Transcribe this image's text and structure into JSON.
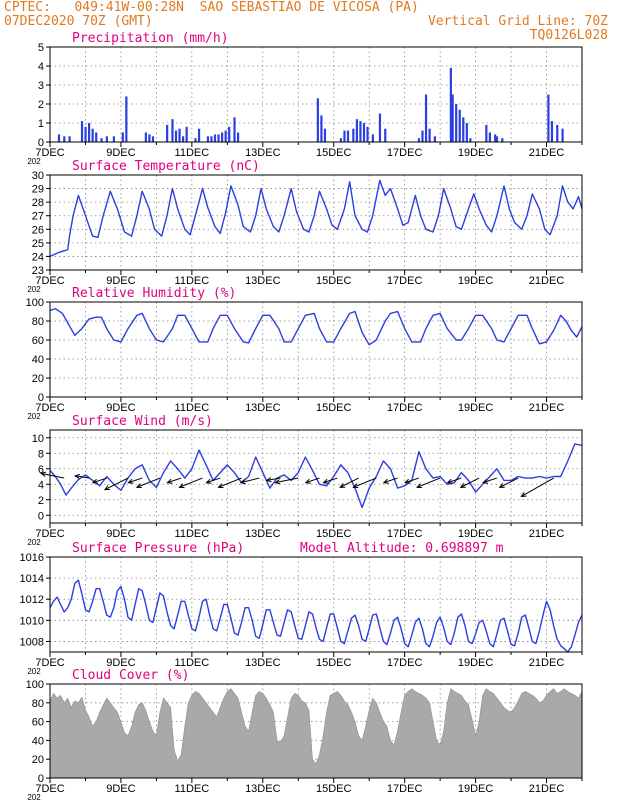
{
  "header": {
    "line1_left": "CPTEC:   049:41W-00:28N  SAO SEBASTIAO DE VICOSA (PA)",
    "line2_left": "07DEC2020 70Z (GMT)",
    "line2_right": "Vertical Grid Line: 70Z",
    "line3_right": "TQ0126L028"
  },
  "colors": {
    "header": "#e07a1f",
    "title": "#e0007f",
    "line": "#2b3fe0",
    "bars": "#2b3fe0",
    "cloud": "#a9a9a9",
    "wind_arrow": "#000000"
  },
  "x_ticks": [
    "7DEC",
    "9DEC",
    "11DEC",
    "13DEC",
    "15DEC",
    "17DEC",
    "19DEC",
    "21DEC"
  ],
  "x_stub": "202",
  "chart_data": [
    {
      "type": "bar",
      "title": "Precipitation (mm/h)",
      "ylim": [
        0,
        5
      ],
      "yticks": [
        "0",
        "1",
        "2",
        "3",
        "4",
        "5"
      ],
      "x_days": [
        0.25,
        0.4,
        0.55,
        0.9,
        1.0,
        1.1,
        1.2,
        1.3,
        1.45,
        1.6,
        1.8,
        2.05,
        2.15,
        2.7,
        2.8,
        2.9,
        3.3,
        3.45,
        3.55,
        3.65,
        3.75,
        3.85,
        4.1,
        4.2,
        4.45,
        4.55,
        4.65,
        4.75,
        4.85,
        4.95,
        5.05,
        5.2,
        5.3,
        7.55,
        7.65,
        7.75,
        8.2,
        8.3,
        8.4,
        8.55,
        8.65,
        8.75,
        8.85,
        8.95,
        9.1,
        9.3,
        9.45,
        10.4,
        10.5,
        10.6,
        10.7,
        10.85,
        11.3,
        11.35,
        11.45,
        11.55,
        11.65,
        11.75,
        11.85,
        12.3,
        12.4,
        12.55,
        12.6,
        12.75,
        14.05,
        14.15,
        14.3,
        14.45
      ],
      "values": [
        0.4,
        0.3,
        0.3,
        1.1,
        0.8,
        1.0,
        0.7,
        0.5,
        0.2,
        0.3,
        0.3,
        0.5,
        2.4,
        0.5,
        0.4,
        0.3,
        0.9,
        1.2,
        0.6,
        0.7,
        0.3,
        0.8,
        0.2,
        0.7,
        0.3,
        0.3,
        0.4,
        0.4,
        0.5,
        0.6,
        0.8,
        1.3,
        0.5,
        2.3,
        1.4,
        0.7,
        0.2,
        0.6,
        0.6,
        0.7,
        1.2,
        1.1,
        1.0,
        0.8,
        0.4,
        1.5,
        0.7,
        0.2,
        0.6,
        2.5,
        0.7,
        0.3,
        3.9,
        2.5,
        2.0,
        1.7,
        1.3,
        1.0,
        0.2,
        0.9,
        0.5,
        0.4,
        0.3,
        0.2,
        2.5,
        1.1,
        0.9,
        0.7
      ]
    },
    {
      "type": "line",
      "title": "Surface Temperature (nC)",
      "ylim": [
        23,
        30
      ],
      "yticks": [
        "23",
        "24",
        "25",
        "26",
        "27",
        "28",
        "29",
        "30"
      ],
      "x": [
        0,
        0.25,
        0.5,
        0.55,
        0.65,
        0.8,
        1.0,
        1.2,
        1.35,
        1.5,
        1.7,
        1.9,
        2.1,
        2.3,
        2.45,
        2.6,
        2.8,
        2.95,
        3.15,
        3.3,
        3.45,
        3.6,
        3.8,
        3.95,
        4.1,
        4.3,
        4.45,
        4.65,
        4.8,
        4.95,
        5.1,
        5.3,
        5.45,
        5.65,
        5.8,
        5.95,
        6.1,
        6.3,
        6.45,
        6.6,
        6.8,
        6.95,
        7.15,
        7.3,
        7.45,
        7.6,
        7.8,
        7.95,
        8.1,
        8.3,
        8.45,
        8.6,
        8.8,
        8.95,
        9.1,
        9.3,
        9.45,
        9.6,
        9.8,
        9.95,
        10.1,
        10.3,
        10.45,
        10.6,
        10.8,
        10.95,
        11.1,
        11.3,
        11.45,
        11.6,
        11.8,
        11.95,
        12.1,
        12.3,
        12.45,
        12.6,
        12.8,
        12.95,
        13.1,
        13.3,
        13.45,
        13.6,
        13.8,
        13.95,
        14.1,
        14.3,
        14.45,
        14.6,
        14.75,
        14.9,
        15.0
      ],
      "values": [
        24.0,
        24.3,
        24.5,
        25.5,
        27.0,
        28.5,
        27.0,
        25.5,
        25.4,
        27.0,
        28.8,
        27.5,
        25.8,
        25.5,
        27.0,
        28.8,
        27.5,
        26.0,
        25.5,
        27.0,
        29.0,
        27.5,
        26.0,
        25.6,
        27.0,
        29.0,
        27.6,
        26.2,
        25.7,
        27.2,
        29.2,
        27.8,
        26.2,
        25.8,
        27.0,
        29.0,
        27.5,
        26.2,
        25.8,
        27.0,
        29.0,
        27.3,
        26.0,
        25.8,
        27.0,
        28.8,
        27.5,
        26.3,
        26.0,
        27.5,
        29.5,
        27.0,
        26.0,
        25.8,
        27.0,
        29.6,
        28.5,
        29.0,
        27.5,
        26.3,
        26.5,
        28.5,
        27.0,
        26.0,
        25.8,
        27.0,
        29.0,
        27.5,
        26.2,
        26.0,
        27.5,
        28.6,
        27.5,
        26.3,
        25.8,
        27.0,
        29.2,
        27.5,
        26.5,
        26.0,
        27.0,
        28.6,
        27.5,
        26.0,
        25.6,
        27.0,
        29.2,
        28.0,
        27.5,
        28.4,
        27.5
      ]
    },
    {
      "type": "line",
      "title": "Relative Humidity (%)",
      "ylim": [
        0,
        100
      ],
      "yticks": [
        "0",
        "20",
        "40",
        "60",
        "80",
        "100"
      ],
      "x": [
        0,
        0.15,
        0.35,
        0.5,
        0.7,
        0.9,
        1.1,
        1.3,
        1.45,
        1.6,
        1.8,
        2.0,
        2.2,
        2.45,
        2.6,
        2.8,
        3.0,
        3.2,
        3.45,
        3.6,
        3.8,
        4.0,
        4.2,
        4.45,
        4.6,
        4.8,
        5.0,
        5.2,
        5.45,
        5.6,
        5.8,
        6.0,
        6.2,
        6.45,
        6.6,
        6.8,
        7.0,
        7.2,
        7.45,
        7.6,
        7.8,
        8.0,
        8.2,
        8.45,
        8.6,
        8.8,
        9.0,
        9.2,
        9.45,
        9.6,
        9.8,
        10.0,
        10.2,
        10.45,
        10.6,
        10.8,
        11.0,
        11.2,
        11.45,
        11.6,
        11.8,
        12.0,
        12.2,
        12.45,
        12.6,
        12.8,
        13.0,
        13.2,
        13.45,
        13.6,
        13.8,
        14.0,
        14.2,
        14.4,
        14.55,
        14.7,
        14.85,
        15.0
      ],
      "values": [
        91,
        93,
        88,
        78,
        65,
        72,
        82,
        84,
        84,
        72,
        60,
        58,
        72,
        86,
        88,
        72,
        60,
        58,
        72,
        86,
        86,
        72,
        58,
        58,
        72,
        86,
        86,
        72,
        58,
        57,
        72,
        86,
        86,
        72,
        58,
        58,
        72,
        86,
        88,
        72,
        58,
        58,
        72,
        88,
        90,
        68,
        55,
        60,
        80,
        88,
        90,
        72,
        58,
        58,
        72,
        86,
        88,
        72,
        60,
        60,
        72,
        86,
        86,
        72,
        60,
        58,
        72,
        86,
        86,
        72,
        56,
        58,
        70,
        86,
        80,
        70,
        63,
        74
      ]
    },
    {
      "type": "line",
      "title": "Surface Wind (m/s)",
      "ylim": [
        -1,
        11
      ],
      "yticks": [
        "0",
        "2",
        "4",
        "6",
        "8",
        "10"
      ],
      "x": [
        0,
        0.15,
        0.3,
        0.45,
        0.6,
        0.8,
        1.0,
        1.2,
        1.4,
        1.6,
        1.8,
        2.0,
        2.2,
        2.4,
        2.6,
        2.8,
        3.0,
        3.2,
        3.4,
        3.6,
        3.8,
        4.0,
        4.2,
        4.4,
        4.6,
        4.8,
        5.0,
        5.2,
        5.4,
        5.6,
        5.8,
        6.0,
        6.2,
        6.4,
        6.6,
        6.8,
        7.0,
        7.2,
        7.4,
        7.6,
        7.8,
        8.0,
        8.2,
        8.4,
        8.6,
        8.8,
        9.0,
        9.2,
        9.4,
        9.6,
        9.8,
        10.0,
        10.2,
        10.4,
        10.6,
        10.8,
        11.0,
        11.2,
        11.4,
        11.6,
        11.8,
        12.0,
        12.2,
        12.4,
        12.6,
        12.8,
        13.0,
        13.2,
        13.4,
        13.6,
        13.8,
        14.0,
        14.2,
        14.4,
        14.6,
        14.8,
        15.0
      ],
      "values": [
        5.8,
        5.0,
        4.0,
        2.6,
        3.5,
        4.6,
        5.2,
        4.5,
        3.8,
        5.0,
        4.0,
        3.2,
        4.8,
        6.0,
        6.5,
        4.5,
        3.6,
        5.5,
        7.0,
        6.0,
        4.8,
        6.0,
        8.4,
        6.5,
        4.5,
        5.5,
        6.5,
        5.5,
        4.2,
        5.0,
        7.5,
        5.5,
        3.5,
        4.8,
        5.2,
        4.5,
        5.5,
        7.5,
        5.8,
        4.0,
        3.8,
        5.0,
        6.5,
        5.5,
        3.5,
        1.0,
        3.5,
        5.0,
        7.0,
        6.0,
        3.5,
        3.8,
        4.5,
        8.2,
        6.0,
        4.8,
        5.0,
        4.0,
        4.2,
        5.5,
        4.5,
        3.0,
        4.0,
        5.0,
        6.0,
        4.5,
        4.5,
        5.0,
        4.8,
        4.8,
        5.0,
        4.8,
        5.0,
        5.0,
        7.0,
        9.2,
        9.0
      ],
      "arrows_x": [
        0.4,
        1.1,
        1.6,
        2.2,
        2.6,
        3.1,
        3.7,
        4.3,
        4.8,
        5.4,
        5.9,
        6.5,
        7.0,
        7.6,
        8.1,
        8.7,
        9.2,
        9.8,
        10.4,
        11.0,
        11.6,
        12.1,
        12.6,
        13.2,
        14.2
      ],
      "arrows_u": [
        -5,
        -3,
        -3,
        -5,
        -3,
        -5,
        -3,
        -5,
        -3,
        -5,
        -4,
        -3,
        -5,
        -3,
        -3,
        -4,
        -5,
        -3,
        -3,
        -5,
        -3,
        -4,
        -3,
        -4,
        -7
      ],
      "arrows_v": [
        1,
        0.5,
        -1,
        -2.5,
        -1,
        -2,
        -1,
        -2,
        -1,
        -2,
        -1,
        -0.5,
        -1,
        -1,
        -1,
        -2,
        -2,
        -1,
        -1,
        -2,
        -1,
        -2,
        -1,
        -2,
        -4
      ]
    },
    {
      "type": "line",
      "title": "Surface Pressure (hPa)",
      "annotation": "Model Altitude: 0.698897 m",
      "ylim": [
        1007,
        1016
      ],
      "yticks": [
        "1008",
        "1010",
        "1012",
        "1014",
        "1016"
      ],
      "x": [
        0,
        0.1,
        0.2,
        0.3,
        0.4,
        0.5,
        0.6,
        0.7,
        0.8,
        0.9,
        1.0,
        1.1,
        1.2,
        1.3,
        1.4,
        1.5,
        1.6,
        1.7,
        1.8,
        1.9,
        2.0,
        2.1,
        2.2,
        2.3,
        2.4,
        2.5,
        2.6,
        2.7,
        2.8,
        2.9,
        3.0,
        3.1,
        3.2,
        3.3,
        3.4,
        3.5,
        3.6,
        3.7,
        3.8,
        3.9,
        4.0,
        4.1,
        4.2,
        4.3,
        4.4,
        4.5,
        4.6,
        4.7,
        4.8,
        4.9,
        5.0,
        5.1,
        5.2,
        5.3,
        5.4,
        5.5,
        5.6,
        5.7,
        5.8,
        5.9,
        6.0,
        6.1,
        6.2,
        6.3,
        6.4,
        6.5,
        6.6,
        6.7,
        6.8,
        6.9,
        7.0,
        7.1,
        7.2,
        7.3,
        7.4,
        7.5,
        7.6,
        7.7,
        7.8,
        7.9,
        8.0,
        8.1,
        8.2,
        8.3,
        8.4,
        8.5,
        8.6,
        8.7,
        8.8,
        8.9,
        9.0,
        9.1,
        9.2,
        9.3,
        9.4,
        9.5,
        9.6,
        9.7,
        9.8,
        9.9,
        10.0,
        10.1,
        10.2,
        10.3,
        10.4,
        10.5,
        10.6,
        10.7,
        10.8,
        10.9,
        11.0,
        11.1,
        11.2,
        11.3,
        11.4,
        11.5,
        11.6,
        11.7,
        11.8,
        11.9,
        12.0,
        12.1,
        12.2,
        12.3,
        12.4,
        12.5,
        12.6,
        12.7,
        12.8,
        12.9,
        13.0,
        13.1,
        13.2,
        13.3,
        13.4,
        13.5,
        13.6,
        13.7,
        13.8,
        13.9,
        14.0,
        14.1,
        14.2,
        14.3,
        14.4,
        14.5,
        14.6,
        14.7,
        14.8,
        14.9,
        15.0
      ],
      "values": [
        1011.2,
        1011.8,
        1012.2,
        1011.5,
        1010.8,
        1011.2,
        1012.0,
        1013.5,
        1013.8,
        1012.5,
        1011.0,
        1010.8,
        1011.8,
        1013.0,
        1013.0,
        1011.8,
        1010.5,
        1010.3,
        1011.2,
        1012.8,
        1013.2,
        1012.0,
        1010.3,
        1010.0,
        1011.5,
        1013.0,
        1012.8,
        1011.5,
        1010.0,
        1009.8,
        1011.2,
        1012.6,
        1012.3,
        1010.8,
        1009.5,
        1009.2,
        1010.5,
        1011.8,
        1011.8,
        1010.5,
        1009.2,
        1009.0,
        1010.3,
        1011.8,
        1012.0,
        1010.5,
        1009.2,
        1009.0,
        1010.2,
        1011.5,
        1011.5,
        1010.2,
        1008.8,
        1008.6,
        1009.8,
        1011.2,
        1011.2,
        1010.0,
        1008.5,
        1008.3,
        1009.6,
        1011.0,
        1011.0,
        1009.8,
        1008.6,
        1008.5,
        1009.8,
        1011.0,
        1010.8,
        1009.5,
        1008.3,
        1008.2,
        1009.5,
        1010.8,
        1010.6,
        1009.3,
        1008.2,
        1008.0,
        1009.3,
        1010.6,
        1010.6,
        1009.3,
        1008.0,
        1007.8,
        1009.0,
        1010.2,
        1010.5,
        1009.5,
        1008.2,
        1008.0,
        1009.2,
        1010.5,
        1010.6,
        1009.3,
        1008.0,
        1007.7,
        1008.8,
        1010.0,
        1010.3,
        1009.2,
        1007.8,
        1007.5,
        1008.6,
        1009.8,
        1010.2,
        1009.2,
        1007.8,
        1007.5,
        1008.5,
        1009.8,
        1010.3,
        1009.3,
        1008.0,
        1007.7,
        1008.8,
        1010.3,
        1010.6,
        1009.5,
        1008.0,
        1007.8,
        1008.7,
        1009.8,
        1010.0,
        1009.0,
        1007.8,
        1007.5,
        1008.7,
        1010.0,
        1010.2,
        1009.0,
        1007.7,
        1007.6,
        1008.8,
        1010.3,
        1010.5,
        1009.3,
        1008.0,
        1007.8,
        1009.0,
        1010.5,
        1011.8,
        1011.0,
        1009.5,
        1008.2,
        1007.6,
        1007.3,
        1007.0,
        1007.5,
        1008.6,
        1009.8,
        1010.5
      ]
    },
    {
      "type": "area",
      "title": "Cloud Cover (%)",
      "ylim": [
        0,
        100
      ],
      "yticks": [
        "0",
        "20",
        "40",
        "60",
        "80",
        "100"
      ],
      "x": [
        0,
        0.1,
        0.2,
        0.3,
        0.4,
        0.5,
        0.6,
        0.7,
        0.8,
        0.9,
        1.0,
        1.1,
        1.2,
        1.3,
        1.4,
        1.5,
        1.6,
        1.7,
        1.8,
        1.9,
        2.0,
        2.1,
        2.2,
        2.3,
        2.4,
        2.5,
        2.6,
        2.7,
        2.8,
        2.9,
        3.0,
        3.1,
        3.2,
        3.3,
        3.4,
        3.5,
        3.6,
        3.7,
        3.8,
        3.9,
        4.0,
        4.1,
        4.2,
        4.3,
        4.4,
        4.5,
        4.6,
        4.7,
        4.8,
        4.9,
        5.0,
        5.1,
        5.2,
        5.3,
        5.4,
        5.5,
        5.6,
        5.7,
        5.8,
        5.9,
        6.0,
        6.1,
        6.2,
        6.3,
        6.4,
        6.5,
        6.6,
        6.7,
        6.8,
        6.9,
        7.0,
        7.1,
        7.2,
        7.3,
        7.4,
        7.5,
        7.6,
        7.7,
        7.8,
        7.9,
        8.0,
        8.1,
        8.2,
        8.3,
        8.4,
        8.5,
        8.6,
        8.7,
        8.8,
        8.9,
        9.0,
        9.1,
        9.2,
        9.3,
        9.4,
        9.5,
        9.6,
        9.7,
        9.8,
        9.9,
        10.0,
        10.1,
        10.2,
        10.3,
        10.4,
        10.5,
        10.6,
        10.7,
        10.8,
        10.9,
        11.0,
        11.1,
        11.2,
        11.3,
        11.4,
        11.5,
        11.6,
        11.7,
        11.8,
        11.9,
        12.0,
        12.1,
        12.2,
        12.3,
        12.4,
        12.5,
        12.6,
        12.7,
        12.8,
        12.9,
        13.0,
        13.1,
        13.2,
        13.3,
        13.4,
        13.5,
        13.6,
        13.7,
        13.8,
        13.9,
        14.0,
        14.1,
        14.2,
        14.3,
        14.4,
        14.5,
        14.6,
        14.7,
        14.8,
        14.9,
        15.0
      ],
      "values": [
        82,
        90,
        85,
        88,
        80,
        85,
        75,
        82,
        80,
        86,
        72,
        65,
        55,
        60,
        70,
        78,
        85,
        80,
        75,
        70,
        60,
        48,
        45,
        55,
        70,
        78,
        80,
        72,
        60,
        50,
        45,
        70,
        85,
        80,
        75,
        30,
        18,
        25,
        55,
        80,
        88,
        92,
        90,
        85,
        80,
        75,
        70,
        65,
        75,
        85,
        92,
        95,
        90,
        85,
        70,
        55,
        50,
        70,
        88,
        92,
        90,
        85,
        78,
        70,
        40,
        38,
        45,
        65,
        85,
        90,
        88,
        82,
        80,
        72,
        20,
        15,
        25,
        45,
        70,
        88,
        90,
        92,
        88,
        82,
        78,
        70,
        60,
        45,
        40,
        55,
        72,
        85,
        80,
        70,
        60,
        55,
        40,
        35,
        50,
        70,
        88,
        92,
        95,
        92,
        90,
        88,
        85,
        80,
        60,
        40,
        35,
        50,
        80,
        95,
        92,
        90,
        88,
        82,
        78,
        62,
        45,
        60,
        88,
        95,
        92,
        90,
        85,
        80,
        75,
        72,
        70,
        75,
        82,
        90,
        92,
        90,
        88,
        85,
        80,
        82,
        88,
        92,
        95,
        90,
        92,
        95,
        92,
        90,
        88,
        85,
        92
      ]
    }
  ]
}
